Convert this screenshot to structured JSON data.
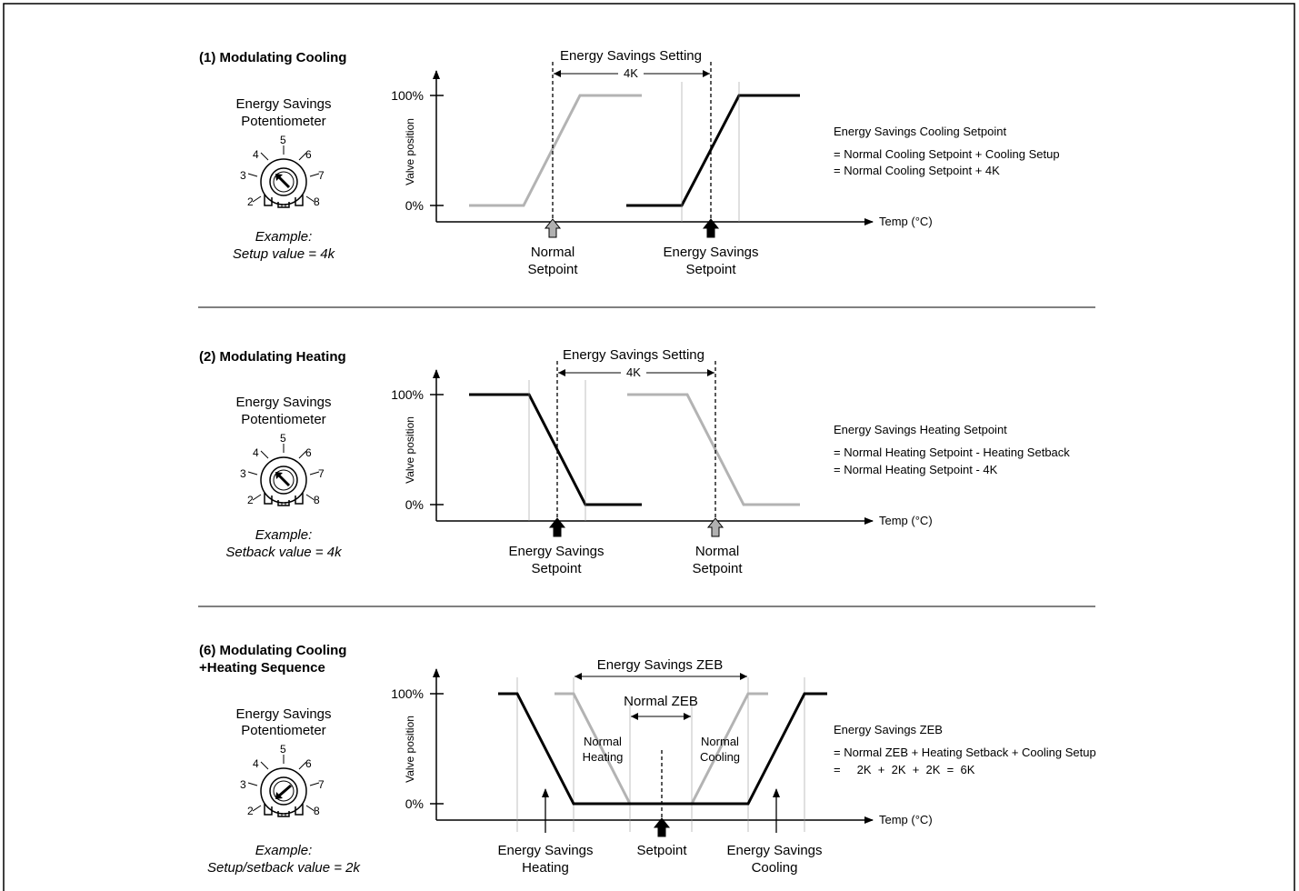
{
  "panels": [
    {
      "title": "(1) Modulating Cooling",
      "pot_label_1": "Energy Savings",
      "pot_label_2": "Potentiometer",
      "example_1": "Example:",
      "example_2": "Setup value = 4k",
      "setting_label": "Energy Savings Setting",
      "setting_value": "4K",
      "y_top": "100%",
      "y_bottom": "0%",
      "y_axis": "Valve position",
      "x_axis": "Temp (°C)",
      "marker_a_1": "Normal",
      "marker_a_2": "Setpoint",
      "marker_b_1": "Energy Savings",
      "marker_b_2": "Setpoint",
      "eq_title": "Energy Savings Cooling Setpoint",
      "eq_line1": "= Normal Cooling Setpoint + Cooling Setup",
      "eq_line2": "= Normal Cooling Setpoint + 4K"
    },
    {
      "title": "(2) Modulating Heating",
      "pot_label_1": "Energy Savings",
      "pot_label_2": "Potentiometer",
      "example_1": "Example:",
      "example_2": "Setback value = 4k",
      "setting_label": "Energy Savings Setting",
      "setting_value": "4K",
      "y_top": "100%",
      "y_bottom": "0%",
      "y_axis": "Valve position",
      "x_axis": "Temp (°C)",
      "marker_a_1": "Energy Savings",
      "marker_a_2": "Setpoint",
      "marker_b_1": "Normal",
      "marker_b_2": "Setpoint",
      "eq_title": "Energy Savings Heating Setpoint",
      "eq_line1": "= Normal Heating Setpoint  - Heating Setback",
      "eq_line2": "= Normal Heating Setpoint - 4K"
    },
    {
      "title_1": "(6) Modulating Cooling",
      "title_2": "+Heating Sequence",
      "pot_label_1": "Energy Savings",
      "pot_label_2": "Potentiometer",
      "example_1": "Example:",
      "example_2": "Setup/setback value = 2k",
      "zeb_es": "Energy Savings ZEB",
      "zeb_normal": "Normal ZEB",
      "normal_heating_1": "Normal",
      "normal_heating_2": "Heating",
      "normal_cooling_1": "Normal",
      "normal_cooling_2": "Cooling",
      "y_top": "100%",
      "y_bottom": "0%",
      "y_axis": "Valve position",
      "x_axis": "Temp (°C)",
      "marker_heat_1": "Energy Savings",
      "marker_heat_2": "Heating",
      "marker_set": "Setpoint",
      "marker_cool_1": "Energy Savings",
      "marker_cool_2": "Cooling",
      "eq_title": "Energy Savings ZEB",
      "eq_line1": "= Normal ZEB + Heating Setback + Cooling Setup",
      "eq_line2": "=     2K  +  2K  +  2K  =  6K"
    }
  ],
  "dial_numbers": [
    "2",
    "3",
    "4",
    "5",
    "6",
    "7",
    "8"
  ],
  "colors": {
    "line_dark": "#000000",
    "line_gray": "#b3b3b3",
    "marker_gray": "#b0b0b0"
  }
}
